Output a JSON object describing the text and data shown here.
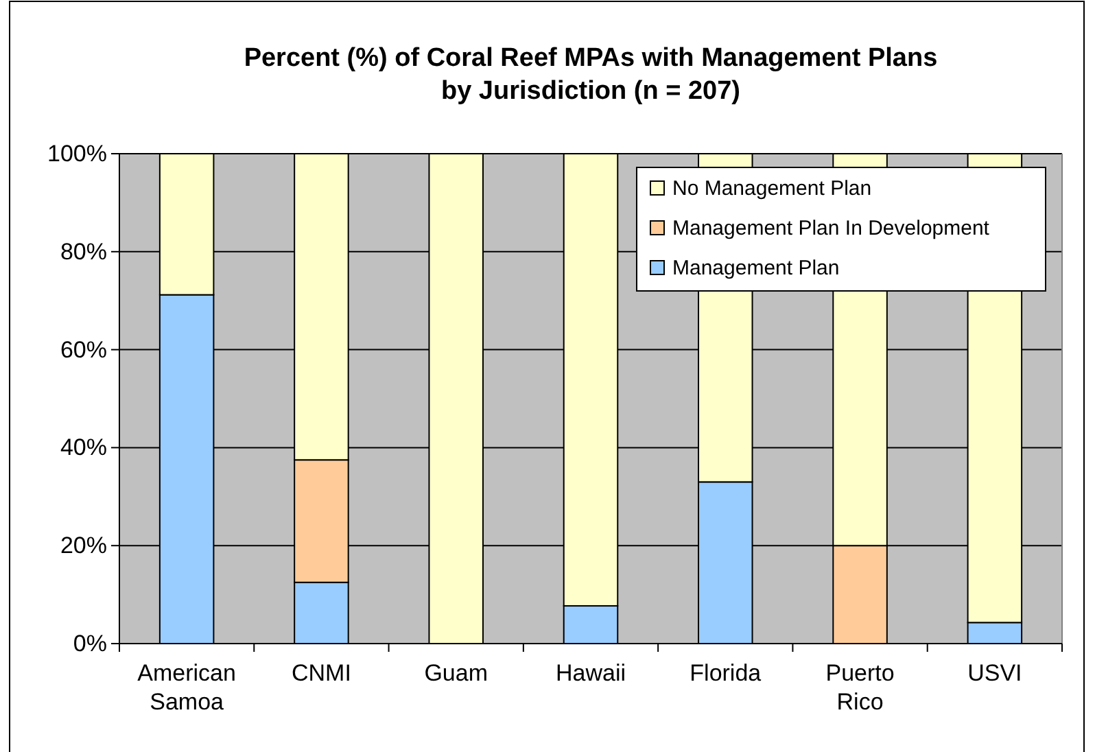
{
  "chart_data": {
    "type": "bar",
    "title": "Percent (%) of Coral Reef MPAs with Management Plans\nby Jurisdiction (n = 207)",
    "categories": [
      "American\nSamoa",
      "CNMI",
      "Guam",
      "Hawaii",
      "Florida",
      "Puerto\nRico",
      "USVI"
    ],
    "stacked": true,
    "series": [
      {
        "name": "Management Plan",
        "color": "#99ccff",
        "values": [
          71.2,
          12.5,
          0,
          7.7,
          33,
          0,
          4.3
        ]
      },
      {
        "name": "Management Plan In Development",
        "color": "#ffcc99",
        "values": [
          0,
          25,
          0,
          0,
          0,
          20,
          0
        ]
      },
      {
        "name": "No Management Plan",
        "color": "#ffffcc",
        "values": [
          28.8,
          62.5,
          100,
          92.3,
          67,
          80,
          95.7
        ]
      }
    ],
    "ylim": [
      0,
      100
    ],
    "yticks": [
      {
        "value": 0,
        "label": "0%"
      },
      {
        "value": 20,
        "label": "20%"
      },
      {
        "value": 40,
        "label": "40%"
      },
      {
        "value": 60,
        "label": "60%"
      },
      {
        "value": 80,
        "label": "80%"
      },
      {
        "value": 100,
        "label": "100%"
      }
    ],
    "grid": "y",
    "legend": "top right"
  }
}
